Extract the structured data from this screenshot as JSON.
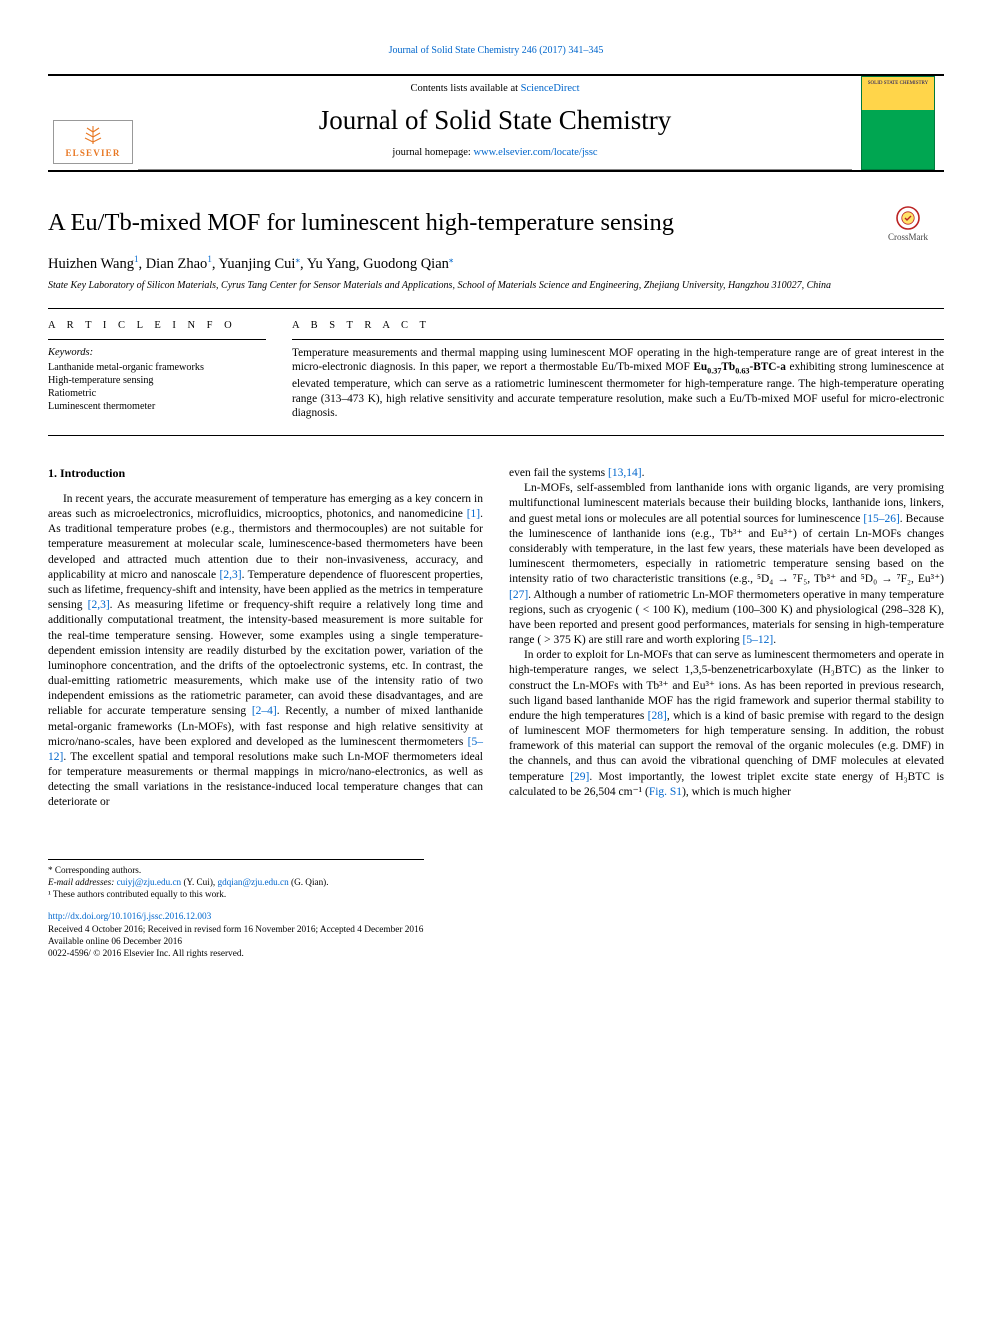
{
  "running_header": {
    "text": "Journal of Solid State Chemistry 246 (2017) 341–345",
    "link_color": "#0066cc"
  },
  "masthead": {
    "contents_prefix": "Contents lists available at ",
    "contents_link": "ScienceDirect",
    "journal_name": "Journal of Solid State Chemistry",
    "homepage_prefix": "journal homepage: ",
    "homepage_link": "www.elsevier.com/locate/jssc",
    "publisher_name": "ELSEVIER",
    "cover_title": "SOLID STATE CHEMISTRY"
  },
  "crossmark": {
    "label": "CrossMark"
  },
  "article": {
    "title": "A Eu/Tb-mixed MOF for luminescent high-temperature sensing",
    "authors_html": "Huizhen Wang<sup>1</sup>, Dian Zhao<sup>1</sup>, Yuanjing Cui<class='star'>*</span>, Yu Yang, Guodong Qian<span class='star'>*</span>",
    "authors": [
      {
        "name": "Huizhen Wang",
        "marks": "1"
      },
      {
        "name": "Dian Zhao",
        "marks": "1"
      },
      {
        "name": "Yuanjing Cui",
        "marks": "*"
      },
      {
        "name": "Yu Yang",
        "marks": ""
      },
      {
        "name": "Guodong Qian",
        "marks": "*"
      }
    ],
    "affiliation": "State Key Laboratory of Silicon Materials, Cyrus Tang Center for Sensor Materials and Applications, School of Materials Science and Engineering, Zhejiang University, Hangzhou 310027, China"
  },
  "article_info": {
    "heading": "A R T I C L E  I N F O",
    "keywords_label": "Keywords:",
    "keywords": [
      "Lanthanide metal-organic frameworks",
      "High-temperature sensing",
      "Ratiometric",
      "Luminescent thermometer"
    ]
  },
  "abstract": {
    "heading": "A B S T R A C T",
    "text": "Temperature measurements and thermal mapping using luminescent MOF operating in the high-temperature range are of great interest in the micro-electronic diagnosis. In this paper, we report a thermostable Eu/Tb-mixed MOF Eu₀.₃₇Tb₀.₆₃-BTC-a exhibiting strong luminescence at elevated temperature, which can serve as a ratiometric luminescent thermometer for high-temperature range. The high-temperature operating range (313–473 K), high relative sensitivity and accurate temperature resolution, make such a Eu/Tb-mixed MOF useful for micro-electronic diagnosis."
  },
  "body": {
    "section_number": "1.",
    "section_title": "Introduction",
    "p1": "In recent years, the accurate measurement of temperature has emerging as a key concern in areas such as microelectronics, microfluidics, microoptics, photonics, and nanomedicine [1]. As traditional temperature probes (e.g., thermistors and thermocouples) are not suitable for temperature measurement at molecular scale, luminescence-based thermometers have been developed and attracted much attention due to their non-invasiveness, accuracy, and applicability at micro and nanoscale [2,3]. Temperature dependence of fluorescent properties, such as lifetime, frequency-shift and intensity, have been applied as the metrics in temperature sensing [2,3]. As measuring lifetime or frequency-shift require a relatively long time and additionally computational treatment, the intensity-based measurement is more suitable for the real-time temperature sensing. However, some examples using a single temperature-dependent emission intensity are readily disturbed by the excitation power, variation of the luminophore concentration, and the drifts of the optoelectronic systems, etc. In contrast, the dual-emitting ratiometric measurements, which make use of the intensity ratio of two independent emissions as the ratiometric parameter, can avoid these disadvantages, and are reliable for accurate temperature sensing [2–4]. Recently, a number of mixed lanthanide metal-organic frameworks (Ln-MOFs), with fast response and high relative sensitivity at micro/nano-scales, have been explored and developed as the luminescent thermometers [5–12]. The excellent spatial and temporal resolutions make such Ln-MOF thermometers ideal for temperature measurements or thermal mappings in micro/nano-electronics, as well as detecting the small variations in the resistance-induced local temperature changes that can deteriorate or",
    "p2": "even fail the systems [13,14].",
    "p3": "Ln-MOFs, self-assembled from lanthanide ions with organic ligands, are very promising multifunctional luminescent materials because their building blocks, lanthanide ions, linkers, and guest metal ions or molecules are all potential sources for luminescence [15–26]. Because the luminescence of lanthanide ions (e.g., Tb³⁺ and Eu³⁺) of certain Ln-MOFs changes considerably with temperature, in the last few years, these materials have been developed as luminescent thermometers, especially in ratiometric temperature sensing based on the intensity ratio of two characteristic transitions (e.g., ⁵D₄ → ⁷F₅, Tb³⁺ and ⁵D₀ → ⁷F₂, Eu³⁺) [27]. Although a number of ratiometric Ln-MOF thermometers operative in many temperature regions, such as cryogenic ( < 100 K), medium (100–300 K) and physiological (298–328 K), have been reported and present good performances, materials for sensing in high-temperature range ( > 375 K) are still rare and worth exploring [5–12].",
    "p4": "In order to exploit for Ln-MOFs that can serve as luminescent thermometers and operate in high-temperature ranges, we select 1,3,5-benzenetricarboxylate (H₃BTC) as the linker to construct the Ln-MOFs with Tb³⁺ and Eu³⁺ ions. As has been reported in previous research, such ligand based lanthanide MOF has the rigid framework and superior thermal stability to endure the high temperatures [28], which is a kind of basic premise with regard to the design of luminescent MOF thermometers for high temperature sensing. In addition, the robust framework of this material can support the removal of the organic molecules (e.g. DMF) in the channels, and thus can avoid the vibrational quenching of DMF molecules at elevated temperature [29]. Most importantly, the lowest triplet excite state energy of H₃BTC is calculated to be 26,504 cm⁻¹ (Fig. S1), which is much higher",
    "refs": [
      "[1]",
      "[2,3]",
      "[2,3]",
      "[2–4]",
      "[5–12]",
      "[13,14]",
      "[15–26]",
      "[27]",
      "[5–12]",
      "[28]",
      "[29]",
      "Fig. S1"
    ]
  },
  "footnotes": {
    "corr": "* Corresponding authors.",
    "email_label": "E-mail addresses: ",
    "email1": "cuiyj@zju.edu.cn",
    "email1_who": " (Y. Cui), ",
    "email2": "gdqian@zju.edu.cn",
    "email2_who": " (G. Qian).",
    "equal": "¹ These authors contributed equally to this work."
  },
  "doi_block": {
    "doi": "http://dx.doi.org/10.1016/j.jssc.2016.12.003",
    "history": "Received 4 October 2016; Received in revised form 16 November 2016; Accepted 4 December 2016",
    "available": "Available online 06 December 2016",
    "copyright": "0022-4596/ © 2016 Elsevier Inc. All rights reserved."
  },
  "colors": {
    "link": "#0066cc",
    "elsevier_orange": "#e87722",
    "cover_green": "#00a651",
    "cover_yellow": "#ffd54a"
  }
}
